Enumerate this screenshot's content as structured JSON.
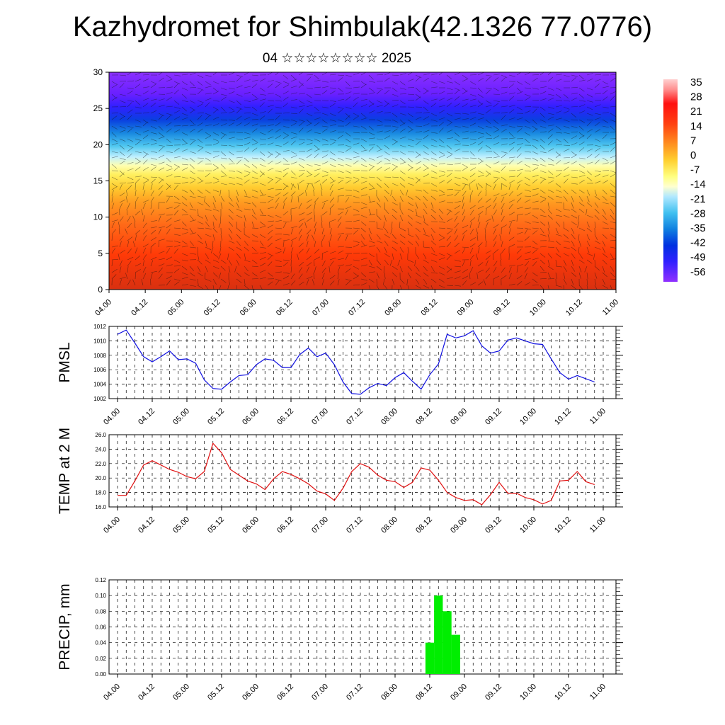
{
  "title": "Kazhydromet for Shimbulak(42.1326 77.0776)",
  "subtitle": "04 ☆☆☆☆☆☆☆☆ 2025",
  "chart_data": [
    {
      "type": "heatmap",
      "description_keys": "filled temperature cross-section with wind vectors",
      "ylim": [
        0,
        30
      ],
      "yticks": [
        "0",
        "5",
        "10",
        "15",
        "20",
        "25",
        "30"
      ],
      "xticks": [
        "04.00",
        "04.12",
        "05.00",
        "05.12",
        "06.00",
        "06.12",
        "07.00",
        "07.12",
        "08.00",
        "08.12",
        "09.00",
        "09.12",
        "10.00",
        "10.12",
        "11.00"
      ],
      "colorbar_labels": [
        "35",
        "28",
        "21",
        "14",
        "7",
        "0",
        "-7",
        "-14",
        "-21",
        "-28",
        "-35",
        "-42",
        "-49",
        "-56"
      ],
      "colors": {
        "scale": [
          "#ffffff",
          "#ff8080",
          "#ff0000",
          "#ff4a10",
          "#ff9a20",
          "#ffd840",
          "#ffffa0",
          "#a0e8ff",
          "#40c0f0",
          "#1080e0",
          "#0040e0",
          "#2020ff",
          "#6020ff",
          "#8030ff"
        ]
      }
    },
    {
      "type": "line",
      "ylabel": "PMSL",
      "ylim": [
        1002,
        1012
      ],
      "yticks": [
        "1002",
        "1004",
        "1006",
        "1008",
        "1010",
        "1012"
      ],
      "xticks": [
        "04.00",
        "04.12",
        "05.00",
        "05.12",
        "06.00",
        "06.12",
        "07.00",
        "07.12",
        "08.00",
        "08.12",
        "09.00",
        "09.12",
        "10.00",
        "10.12",
        "11.00"
      ],
      "x_hours": [
        0,
        3,
        6,
        9,
        12,
        15,
        18,
        21,
        24,
        27,
        30,
        33,
        36,
        39,
        42,
        45,
        48,
        51,
        54,
        57,
        60,
        63,
        66,
        69,
        72,
        75,
        78,
        81,
        84,
        87,
        90,
        93,
        96,
        99,
        102,
        105,
        108,
        111,
        114,
        117,
        120,
        123,
        126,
        129,
        132,
        135,
        138,
        141,
        144,
        147,
        150,
        153,
        156,
        159,
        165
      ],
      "values": [
        1010.9,
        1011.5,
        1009.7,
        1007.8,
        1007.1,
        1007.8,
        1008.6,
        1007.4,
        1007.5,
        1006.9,
        1004.6,
        1003.4,
        1003.3,
        1004.3,
        1005.2,
        1005.3,
        1006.7,
        1007.5,
        1007.3,
        1006.3,
        1006.3,
        1008.1,
        1009.0,
        1007.8,
        1008.3,
        1006.7,
        1004.3,
        1002.7,
        1002.6,
        1003.5,
        1004.1,
        1003.8,
        1004.9,
        1005.6,
        1004.4,
        1003.3,
        1005.3,
        1006.8,
        1010.9,
        1010.4,
        1010.7,
        1011.4,
        1009.3,
        1008.3,
        1008.6,
        1010.1,
        1010.4,
        1010.0,
        1009.6,
        1009.5,
        1007.5,
        1005.6,
        1004.7,
        1005.2,
        1004.3
      ],
      "colors": {
        "line": "#1010e0"
      }
    },
    {
      "type": "line",
      "ylabel": "TEMP at 2 M",
      "ylim": [
        16,
        26
      ],
      "yticks": [
        "16.0",
        "18.0",
        "20.0",
        "22.0",
        "24.0",
        "26.0"
      ],
      "xticks": [
        "04.00",
        "04.12",
        "05.00",
        "05.12",
        "06.00",
        "06.12",
        "07.00",
        "07.12",
        "08.00",
        "08.12",
        "09.00",
        "09.12",
        "10.00",
        "10.12",
        "11.00"
      ],
      "x_hours": [
        0,
        3,
        6,
        9,
        12,
        15,
        18,
        21,
        24,
        27,
        30,
        33,
        36,
        39,
        42,
        45,
        48,
        51,
        54,
        57,
        60,
        63,
        66,
        69,
        72,
        75,
        78,
        81,
        84,
        87,
        90,
        93,
        96,
        99,
        102,
        105,
        108,
        111,
        114,
        117,
        120,
        123,
        126,
        129,
        132,
        135,
        138,
        141,
        144,
        147,
        150,
        153,
        156,
        159,
        162,
        165
      ],
      "values": [
        17.6,
        17.6,
        19.6,
        21.8,
        22.4,
        21.8,
        21.2,
        20.8,
        20.2,
        19.9,
        20.9,
        24.8,
        23.5,
        21.2,
        20.4,
        19.6,
        19.2,
        18.4,
        19.9,
        20.9,
        20.5,
        19.9,
        19.2,
        18.2,
        17.8,
        16.9,
        18.6,
        20.9,
        22.0,
        21.5,
        20.4,
        19.7,
        19.5,
        18.7,
        19.4,
        21.4,
        21.1,
        19.7,
        18.0,
        17.3,
        16.9,
        17.0,
        16.3,
        17.7,
        19.4,
        17.9,
        17.9,
        17.3,
        17.0,
        16.4,
        16.9,
        19.6,
        19.7,
        20.9,
        19.5,
        19.1
      ],
      "colors": {
        "line": "#e01010"
      }
    },
    {
      "type": "bar",
      "ylabel": "PRECIP, mm",
      "ylim": [
        0,
        0.12
      ],
      "yticks": [
        "0.00",
        "0.02",
        "0.04",
        "0.06",
        "0.08",
        "0.10",
        "0.12"
      ],
      "xticks": [
        "04.00",
        "04.12",
        "05.00",
        "05.12",
        "06.00",
        "06.12",
        "07.00",
        "07.12",
        "08.00",
        "08.12",
        "09.00",
        "09.12",
        "10.00",
        "10.12",
        "11.00"
      ],
      "bars": [
        {
          "x_hour": 108,
          "value": 0.04
        },
        {
          "x_hour": 111,
          "value": 0.1
        },
        {
          "x_hour": 114,
          "value": 0.08
        },
        {
          "x_hour": 117,
          "value": 0.05
        }
      ],
      "colors": {
        "bar": "#00ee00"
      }
    }
  ]
}
